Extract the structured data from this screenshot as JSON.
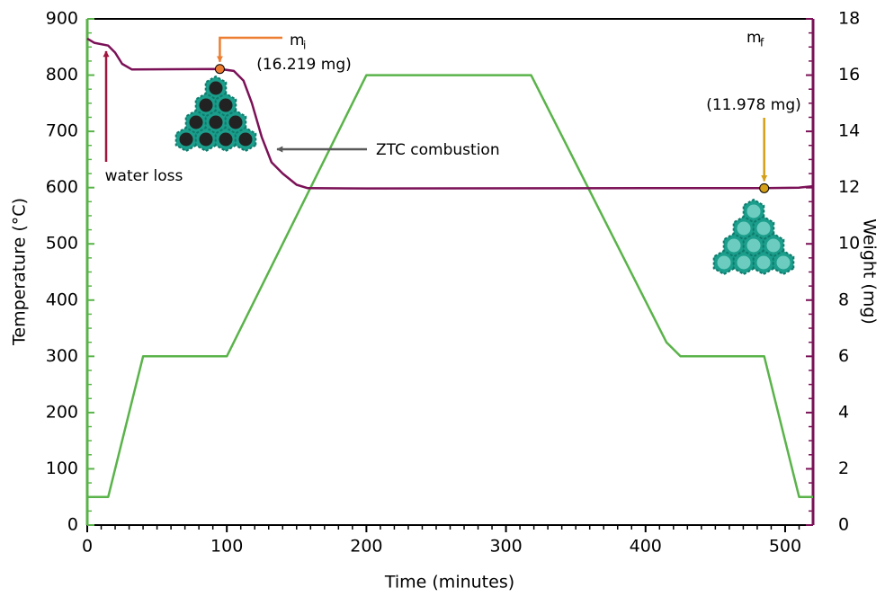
{
  "chart_data": {
    "type": "line",
    "x_label": "Time (minutes)",
    "y_label": "Temperature (°C)",
    "y2_label": "Weight (mg)",
    "xlim": [
      0,
      520
    ],
    "xticks": [
      0,
      100,
      200,
      300,
      400,
      500
    ],
    "ylim": [
      0,
      900
    ],
    "yticks": [
      0,
      100,
      200,
      300,
      400,
      500,
      600,
      700,
      800,
      900
    ],
    "y2lim": [
      0,
      18
    ],
    "y2ticks": [
      0,
      2,
      4,
      6,
      8,
      10,
      12,
      14,
      16,
      18
    ],
    "y_axis_color": "#5ab34a",
    "y2_axis_color": "#7b1157",
    "series": [
      {
        "color": "#5ab34a",
        "x": [
          0,
          15,
          40,
          100,
          200,
          318,
          415,
          425,
          485,
          510,
          520
        ],
        "values": [
          50,
          50,
          300,
          300,
          800,
          800,
          325,
          300,
          300,
          50,
          50
        ]
      },
      {
        "color": "#7b1157",
        "axis": "y2",
        "x": [
          0,
          5,
          15,
          20,
          25,
          32,
          60,
          95,
          105,
          112,
          118,
          125,
          132,
          140,
          150,
          158,
          200,
          400,
          485,
          510,
          520
        ],
        "values": [
          17.3,
          17.15,
          17.05,
          16.8,
          16.4,
          16.2,
          16.21,
          16.22,
          16.15,
          15.8,
          15,
          13.8,
          12.9,
          12.5,
          12.1,
          11.98,
          11.97,
          11.98,
          11.98,
          12.0,
          12.05
        ]
      }
    ],
    "points": [
      {
        "x": 95,
        "value": 16.219,
        "color": "#ed7d31",
        "label": "m",
        "subscript": "i",
        "detail": "(16.219 mg)"
      },
      {
        "x": 485,
        "value": 11.978,
        "color": "#d4a017",
        "label": "m",
        "subscript": "f",
        "detail": "(11.978 mg)"
      }
    ],
    "annotations": [
      {
        "text": "water loss",
        "color": "#a0153e"
      },
      {
        "text": "ZTC combustion",
        "color": "#595959"
      }
    ]
  }
}
